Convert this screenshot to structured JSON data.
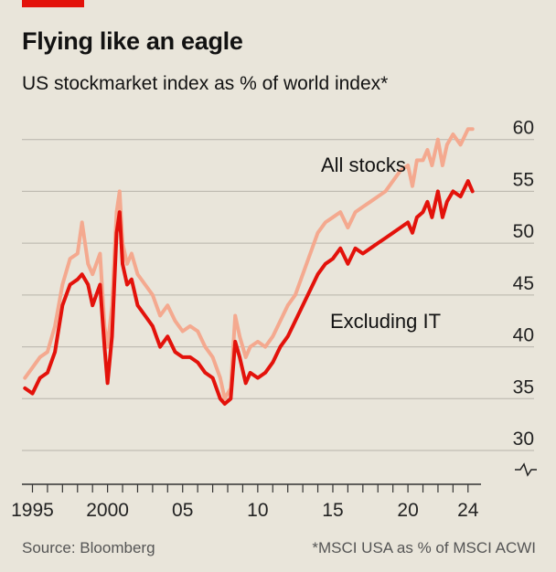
{
  "header": {
    "title": "Flying like an eagle",
    "subtitle": "US stockmarket index as % of world index*"
  },
  "footer": {
    "source": "Source: Bloomberg",
    "note": "*MSCI USA as % of MSCI ACWI"
  },
  "colors": {
    "all_stocks": "#f4a98f",
    "excluding_it": "#e3120b",
    "grid": "#b7b4ab",
    "axis": "#333333"
  },
  "chart_data": {
    "type": "line",
    "title": "US stockmarket index as % of world index*",
    "xlabel": "",
    "ylabel": "",
    "xlim": [
      1994.3,
      2024.5
    ],
    "ylim": [
      30,
      62
    ],
    "y_ticks": [
      30,
      35,
      40,
      45,
      50,
      55,
      60
    ],
    "x_ticks": [
      {
        "value": 1995,
        "label": "1995"
      },
      {
        "value": 2000,
        "label": "2000"
      },
      {
        "value": 2005,
        "label": "05"
      },
      {
        "value": 2010,
        "label": "10"
      },
      {
        "value": 2015,
        "label": "15"
      },
      {
        "value": 2020,
        "label": "20"
      },
      {
        "value": 2024,
        "label": "24"
      }
    ],
    "grid": true,
    "axis_break": true,
    "series": [
      {
        "name": "All stocks",
        "label": "All stocks",
        "color": "#f4a98f",
        "x": [
          1994.5,
          1995,
          1995.5,
          1996,
          1996.5,
          1997,
          1997.5,
          1998,
          1998.3,
          1998.7,
          1999,
          1999.5,
          1999.8,
          2000,
          2000.3,
          2000.6,
          2000.8,
          2001,
          2001.3,
          2001.6,
          2002,
          2002.5,
          2003,
          2003.5,
          2004,
          2004.5,
          2005,
          2005.5,
          2006,
          2006.5,
          2007,
          2007.5,
          2007.8,
          2008.2,
          2008.5,
          2008.8,
          2009.2,
          2009.5,
          2010,
          2010.5,
          2011,
          2011.5,
          2012,
          2012.5,
          2013,
          2013.5,
          2014,
          2014.5,
          2015,
          2015.5,
          2016,
          2016.5,
          2017,
          2017.5,
          2018,
          2018.5,
          2019,
          2019.5,
          2020,
          2020.3,
          2020.6,
          2021,
          2021.3,
          2021.6,
          2022,
          2022.3,
          2022.6,
          2023,
          2023.5,
          2024,
          2024.3
        ],
        "values": [
          37,
          38,
          39,
          39.5,
          42,
          46,
          48.5,
          49,
          52,
          48,
          47,
          49,
          42,
          40,
          44,
          53,
          55,
          50,
          48,
          49,
          47,
          46,
          45,
          43,
          44,
          42.5,
          41.5,
          42,
          41.5,
          40,
          39,
          37,
          35,
          36,
          43,
          41,
          39,
          40,
          40.5,
          40,
          41,
          42.5,
          44,
          45,
          47,
          49,
          51,
          52,
          52.5,
          53,
          51.5,
          53,
          53.5,
          54,
          54.5,
          55,
          56,
          57,
          57.5,
          55.5,
          58,
          58,
          59,
          57.5,
          60,
          57.5,
          59.5,
          60.5,
          59.5,
          61,
          61
        ]
      },
      {
        "name": "Excluding IT",
        "label": "Excluding IT",
        "color": "#e3120b",
        "x": [
          1994.5,
          1995,
          1995.5,
          1996,
          1996.5,
          1997,
          1997.5,
          1998,
          1998.3,
          1998.7,
          1999,
          1999.5,
          1999.8,
          2000,
          2000.3,
          2000.6,
          2000.8,
          2001,
          2001.3,
          2001.6,
          2002,
          2002.5,
          2003,
          2003.5,
          2004,
          2004.5,
          2005,
          2005.5,
          2006,
          2006.5,
          2007,
          2007.5,
          2007.8,
          2008.2,
          2008.5,
          2008.8,
          2009.2,
          2009.5,
          2010,
          2010.5,
          2011,
          2011.5,
          2012,
          2012.5,
          2013,
          2013.5,
          2014,
          2014.5,
          2015,
          2015.5,
          2016,
          2016.5,
          2017,
          2017.5,
          2018,
          2018.5,
          2019,
          2019.5,
          2020,
          2020.3,
          2020.6,
          2021,
          2021.3,
          2021.6,
          2022,
          2022.3,
          2022.6,
          2023,
          2023.5,
          2024,
          2024.3
        ],
        "values": [
          36,
          35.5,
          37,
          37.5,
          39.5,
          44,
          46,
          46.5,
          47,
          46,
          44,
          46,
          40,
          36.5,
          41,
          51,
          53,
          48,
          46,
          46.5,
          44,
          43,
          42,
          40,
          41,
          39.5,
          39,
          39,
          38.5,
          37.5,
          37,
          35,
          34.5,
          35,
          40.5,
          39,
          36.5,
          37.5,
          37,
          37.5,
          38.5,
          40,
          41,
          42.5,
          44,
          45.5,
          47,
          48,
          48.5,
          49.5,
          48,
          49.5,
          49,
          49.5,
          50,
          50.5,
          51,
          51.5,
          52,
          51,
          52.5,
          53,
          54,
          52.5,
          55,
          52.5,
          54,
          55,
          54.5,
          56,
          55
        ]
      }
    ]
  }
}
